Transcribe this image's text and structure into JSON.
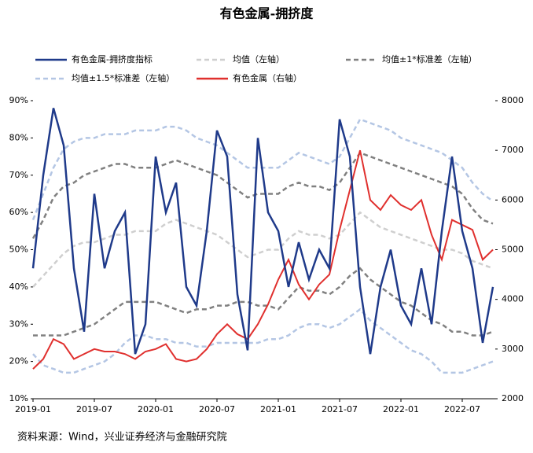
{
  "chart_data": {
    "type": "line",
    "title": "有色金属-拥挤度",
    "source": "资料来源：Wind，兴业证券经济与金融研究院",
    "categories": [
      "2019-01",
      "2019-02",
      "2019-03",
      "2019-04",
      "2019-05",
      "2019-06",
      "2019-07",
      "2019-08",
      "2019-09",
      "2019-10",
      "2019-11",
      "2019-12",
      "2020-01",
      "2020-02",
      "2020-03",
      "2020-04",
      "2020-05",
      "2020-06",
      "2020-07",
      "2020-08",
      "2020-09",
      "2020-10",
      "2020-11",
      "2020-12",
      "2021-01",
      "2021-02",
      "2021-03",
      "2021-04",
      "2021-05",
      "2021-06",
      "2021-07",
      "2021-08",
      "2021-09",
      "2021-10",
      "2021-11",
      "2021-12",
      "2022-01",
      "2022-02",
      "2022-03",
      "2022-04",
      "2022-05",
      "2022-06",
      "2022-07",
      "2022-08",
      "2022-09",
      "2022-10"
    ],
    "ylim": [
      10,
      90
    ],
    "yticks": [
      {
        "value": 10,
        "label": "10%"
      },
      {
        "value": 20,
        "label": "20%"
      },
      {
        "value": 30,
        "label": "30%"
      },
      {
        "value": 40,
        "label": "40%"
      },
      {
        "value": 50,
        "label": "50%"
      },
      {
        "value": 60,
        "label": "60%"
      },
      {
        "value": 70,
        "label": "70%"
      },
      {
        "value": 80,
        "label": "80%"
      },
      {
        "value": 90,
        "label": "90%"
      }
    ],
    "y2lim": [
      2000,
      8000
    ],
    "y2ticks": [
      2000,
      3000,
      4000,
      5000,
      6000,
      7000,
      8000
    ],
    "series": [
      {
        "name": "有色金属-拥挤度指标",
        "color": "#1f3a8a",
        "dash": false,
        "values": [
          45,
          70,
          88,
          78,
          45,
          28,
          65,
          45,
          55,
          60,
          22,
          30,
          75,
          60,
          68,
          40,
          35,
          55,
          82,
          75,
          38,
          23,
          80,
          60,
          55,
          40,
          52,
          42,
          50,
          45,
          85,
          75,
          40,
          22,
          40,
          50,
          35,
          30,
          45,
          30,
          55,
          75,
          55,
          45,
          25,
          40
        ]
      },
      {
        "name": "均值（左轴）",
        "color": "#cfcfcf",
        "dash": true,
        "values": [
          40,
          43,
          46,
          49,
          51,
          52,
          52,
          53,
          54,
          54,
          55,
          55,
          55,
          57,
          58,
          57,
          56,
          55,
          54,
          52,
          50,
          48,
          49,
          50,
          50,
          53,
          55,
          54,
          54,
          53,
          54,
          57,
          60,
          58,
          56,
          55,
          54,
          53,
          52,
          51,
          50,
          50,
          49,
          47,
          46,
          45
        ]
      },
      {
        "name": "均值±1*标准差（左轴）",
        "color": "#808080",
        "dash": true,
        "upper": [
          53,
          58,
          64,
          67,
          68,
          70,
          71,
          72,
          73,
          73,
          72,
          72,
          72,
          73,
          74,
          73,
          72,
          71,
          70,
          68,
          66,
          64,
          65,
          65,
          65,
          67,
          68,
          67,
          67,
          66,
          68,
          72,
          76,
          75,
          74,
          73,
          72,
          71,
          70,
          69,
          68,
          67,
          65,
          61,
          58,
          57
        ],
        "lower": [
          27,
          27,
          27,
          27,
          28,
          29,
          30,
          32,
          34,
          36,
          36,
          36,
          36,
          35,
          34,
          33,
          34,
          34,
          35,
          35,
          36,
          36,
          35,
          35,
          34,
          37,
          40,
          39,
          39,
          38,
          40,
          43,
          45,
          42,
          40,
          38,
          36,
          35,
          33,
          31,
          30,
          28,
          28,
          27,
          27,
          28
        ]
      },
      {
        "name": "均值±1.5*标准差（左轴）",
        "color": "#b4c6e4",
        "dash": true,
        "upper": [
          58,
          65,
          72,
          77,
          79,
          80,
          80,
          81,
          81,
          81,
          82,
          82,
          82,
          83,
          83,
          82,
          80,
          79,
          78,
          76,
          74,
          72,
          72,
          72,
          72,
          74,
          76,
          75,
          74,
          73,
          75,
          80,
          85,
          84,
          83,
          82,
          80,
          79,
          78,
          77,
          76,
          74,
          72,
          68,
          65,
          63
        ],
        "lower": [
          22,
          19,
          18,
          17,
          17,
          18,
          19,
          20,
          22,
          25,
          27,
          27,
          26,
          26,
          25,
          25,
          24,
          24,
          25,
          25,
          25,
          25,
          25,
          26,
          26,
          27,
          29,
          30,
          30,
          29,
          30,
          32,
          34,
          31,
          29,
          27,
          25,
          23,
          22,
          20,
          17,
          17,
          17,
          18,
          19,
          20
        ]
      },
      {
        "name": "有色金属（右轴）",
        "color": "#e0302e",
        "dash": false,
        "axis": "y2",
        "values": [
          2600,
          2800,
          3200,
          3100,
          2800,
          2900,
          3000,
          2950,
          2950,
          2900,
          2800,
          2950,
          3000,
          3100,
          2800,
          2750,
          2800,
          3000,
          3300,
          3500,
          3300,
          3200,
          3500,
          3900,
          4400,
          4800,
          4300,
          4000,
          4300,
          4500,
          5400,
          6200,
          7000,
          6000,
          5800,
          6100,
          5900,
          5800,
          6000,
          5300,
          4800,
          5600,
          5500,
          5400,
          4800,
          5000
        ]
      }
    ]
  }
}
